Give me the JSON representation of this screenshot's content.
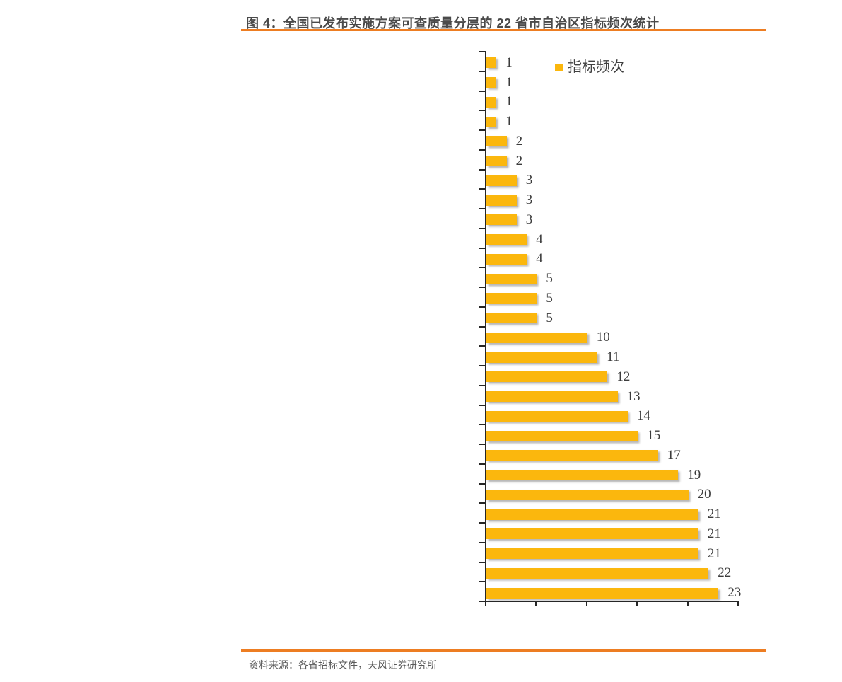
{
  "figure": {
    "title": "图 4：全国已发布实施方案可查质量分层的 22 省市自治区指标频次统计",
    "source": "资料来源：各省招标文件，天风证券研究所"
  },
  "legend": {
    "label": "指标频次",
    "swatch_icon": "gold-square-icon"
  },
  "colors": {
    "accent_orange": "#ED7D22",
    "bar_gold": "#FBB70D",
    "axis": "#262626",
    "title_text": "#4A4A4A",
    "value_text": "#3C3C3C",
    "source_text": "#595959"
  },
  "chart_data": {
    "type": "bar",
    "orientation": "horizontal",
    "title": "图 4：全国已发布实施方案可查质量分层的 22 省市自治区指标频次统计",
    "series": [
      {
        "name": "指标频次",
        "values": [
          1,
          1,
          1,
          1,
          2,
          2,
          3,
          3,
          3,
          4,
          4,
          5,
          5,
          5,
          10,
          11,
          12,
          13,
          14,
          15,
          17,
          19,
          20,
          21,
          21,
          21,
          22,
          23
        ]
      }
    ],
    "bar_count": 28,
    "value_labels_shown": true,
    "category_labels_shown": false,
    "xlim": [
      0,
      25
    ],
    "x_tick_interval": 5,
    "x_tick_labels_shown": false,
    "grid": false,
    "legend_position": "top-right-inside"
  }
}
